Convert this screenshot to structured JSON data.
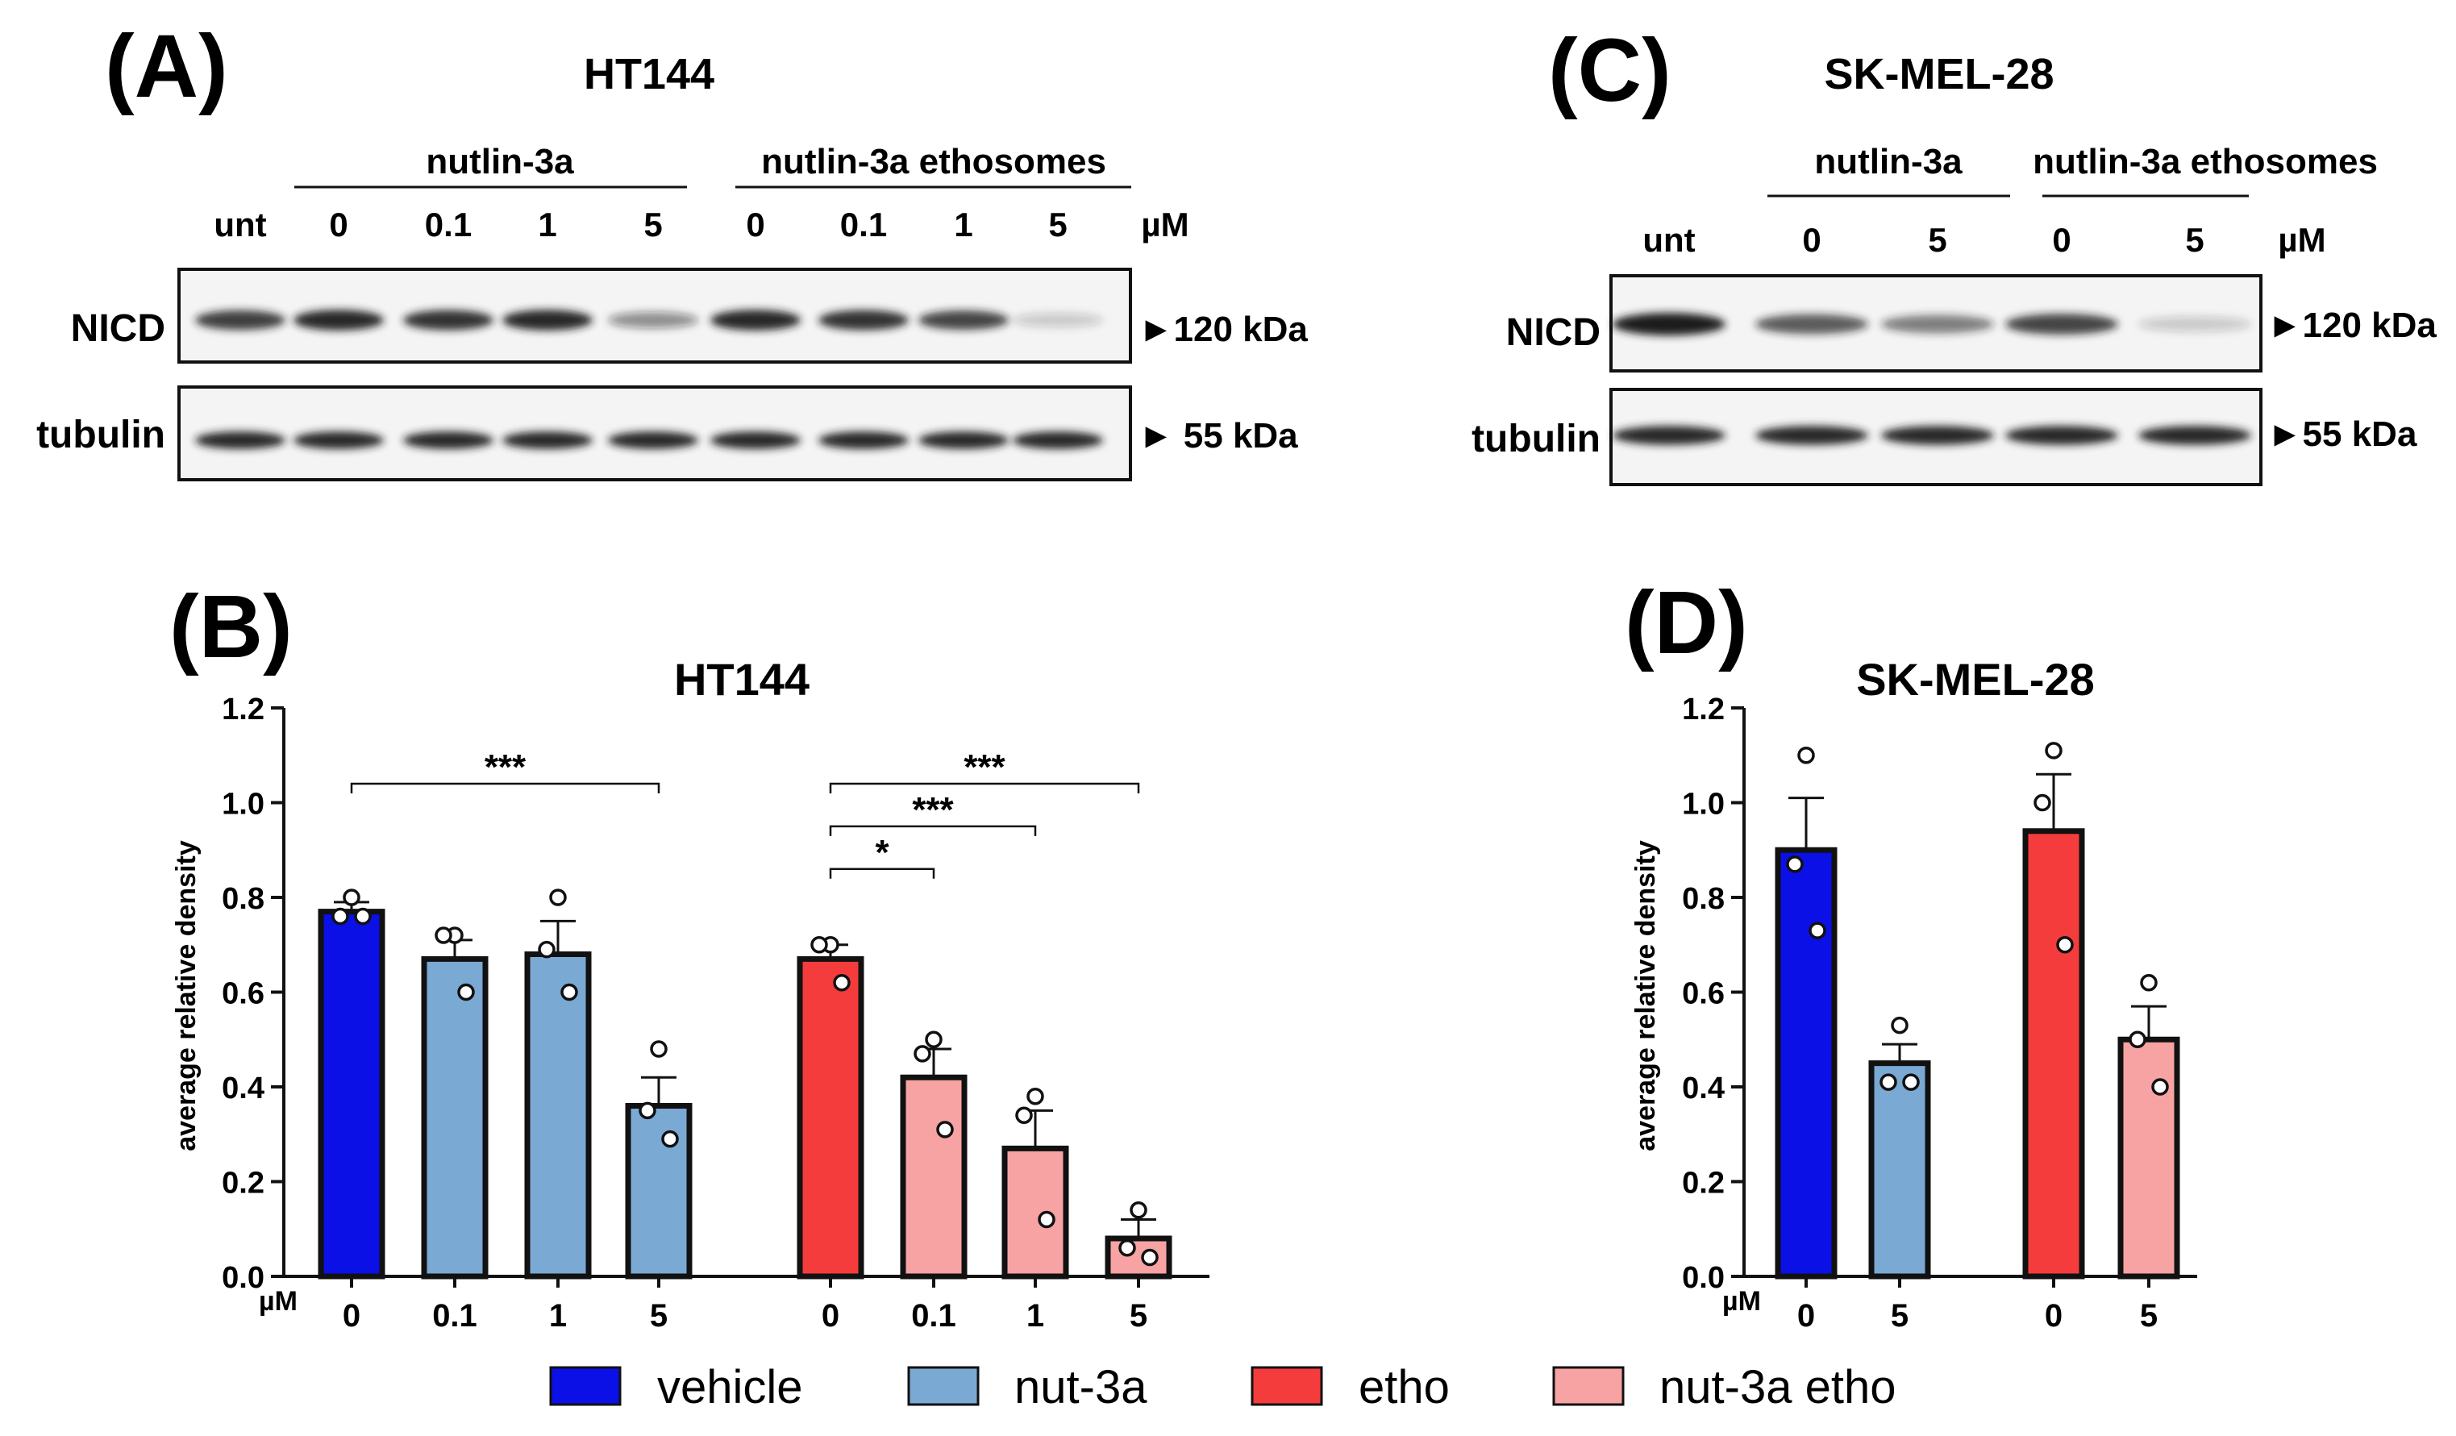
{
  "colors": {
    "vehicle": "#0a10e6",
    "nut3a": "#7aa9d4",
    "etho": "#f53c3c",
    "nut3a_etho": "#f7a3a3",
    "band": "#1c1c1c",
    "blot_bg": "#f4f4f4"
  },
  "panelA": {
    "letter": "(A)",
    "title": "HT144",
    "group1_label": "nutlin-3a",
    "group2_label": "nutlin-3a ethosomes",
    "lanes": [
      "unt",
      "0",
      "0.1",
      "1",
      "5",
      "0",
      "0.1",
      "1",
      "5"
    ],
    "unit": "µM",
    "rows": [
      {
        "label": "NICD",
        "marker": "►120 kDa",
        "intensities": [
          0.85,
          0.95,
          0.9,
          0.95,
          0.45,
          0.95,
          0.9,
          0.8,
          0.2
        ]
      },
      {
        "label": "tubulin",
        "marker": "► 55 kDa",
        "intensities": [
          0.95,
          0.95,
          0.95,
          0.95,
          0.95,
          0.95,
          0.95,
          0.95,
          0.95
        ]
      }
    ]
  },
  "panelC": {
    "letter": "(C)",
    "title": "SK-MEL-28",
    "group1_label": "nutlin-3a",
    "group2_label": "nutlin-3a ethosomes",
    "lanes": [
      "unt",
      "0",
      "5",
      "0",
      "5"
    ],
    "unit": "µM",
    "rows": [
      {
        "label": "NICD",
        "marker": "►120 kDa",
        "intensities": [
          1.0,
          0.7,
          0.55,
          0.8,
          0.2
        ]
      },
      {
        "label": "tubulin",
        "marker": "►55 kDa",
        "intensities": [
          0.95,
          0.95,
          0.95,
          0.95,
          0.95
        ]
      }
    ]
  },
  "chart_data": [
    {
      "panel": "(B)",
      "type": "bar",
      "title": "HT144",
      "ylabel": "average relative density",
      "xlabel": "µM",
      "ylim": [
        0,
        1.2
      ],
      "yticks": [
        "0.0",
        "0.2",
        "0.4",
        "0.6",
        "0.8",
        "1.0",
        "1.2"
      ],
      "categories": [
        "0",
        "0.1",
        "1",
        "5",
        "0",
        "0.1",
        "1",
        "5"
      ],
      "groups": [
        "vehicle",
        "nut-3a",
        "nut-3a",
        "nut-3a",
        "etho",
        "nut-3a etho",
        "nut-3a etho",
        "nut-3a etho"
      ],
      "values": [
        0.77,
        0.67,
        0.68,
        0.36,
        0.67,
        0.42,
        0.27,
        0.08
      ],
      "errors": [
        0.02,
        0.04,
        0.07,
        0.06,
        0.03,
        0.06,
        0.08,
        0.04
      ],
      "points": [
        [
          0.8,
          0.76,
          0.76
        ],
        [
          0.72,
          0.72,
          0.6
        ],
        [
          0.8,
          0.69,
          0.6
        ],
        [
          0.48,
          0.35,
          0.29
        ],
        [
          0.7,
          0.7,
          0.62
        ],
        [
          0.5,
          0.47,
          0.31
        ],
        [
          0.38,
          0.34,
          0.12
        ],
        [
          0.14,
          0.06,
          0.04
        ]
      ],
      "significance": [
        {
          "from": 0,
          "to": 3,
          "label": "***"
        },
        {
          "from": 4,
          "to": 7,
          "label": "***"
        },
        {
          "from": 4,
          "to": 6,
          "label": "***"
        },
        {
          "from": 4,
          "to": 5,
          "label": "*"
        }
      ]
    },
    {
      "panel": "(D)",
      "type": "bar",
      "title": "SK-MEL-28",
      "ylabel": "average relative density",
      "xlabel": "µM",
      "ylim": [
        0,
        1.2
      ],
      "yticks": [
        "0.0",
        "0.2",
        "0.4",
        "0.6",
        "0.8",
        "1.0",
        "1.2"
      ],
      "categories": [
        "0",
        "5",
        "0",
        "5"
      ],
      "groups": [
        "vehicle",
        "nut-3a",
        "etho",
        "nut-3a etho"
      ],
      "values": [
        0.9,
        0.45,
        0.94,
        0.5
      ],
      "errors": [
        0.11,
        0.04,
        0.12,
        0.07
      ],
      "points": [
        [
          1.1,
          0.87,
          0.73
        ],
        [
          0.53,
          0.41,
          0.41
        ],
        [
          1.11,
          1.0,
          0.7
        ],
        [
          0.62,
          0.5,
          0.4
        ]
      ],
      "significance": []
    }
  ],
  "legend": [
    {
      "label": "vehicle",
      "color_key": "vehicle"
    },
    {
      "label": "nut-3a",
      "color_key": "nut3a"
    },
    {
      "label": "etho",
      "color_key": "etho"
    },
    {
      "label": "nut-3a etho",
      "color_key": "nut3a_etho"
    }
  ]
}
